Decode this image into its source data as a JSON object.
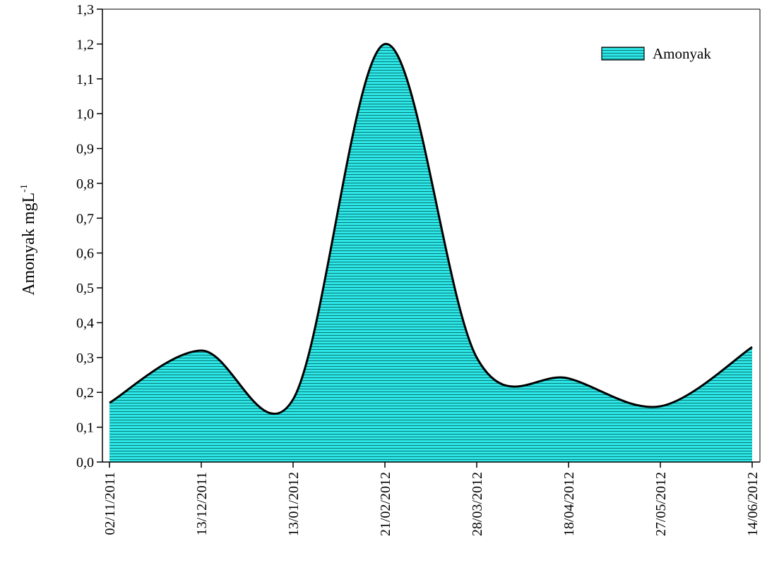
{
  "chart_data": {
    "type": "area",
    "title": "",
    "xlabel": "",
    "ylabel": "Amonyak mgL",
    "ylabel_superscript": "-1",
    "ylim": [
      0,
      1.3
    ],
    "yticks": [
      0.0,
      0.1,
      0.2,
      0.3,
      0.4,
      0.5,
      0.6,
      0.7,
      0.8,
      0.9,
      1.0,
      1.1,
      1.2,
      1.3
    ],
    "ytick_labels": [
      "0,0",
      "0,1",
      "0,2",
      "0,3",
      "0,4",
      "0,5",
      "0,6",
      "0,7",
      "0,8",
      "0,9",
      "1,0",
      "1,1",
      "1,2",
      "1,3"
    ],
    "categories": [
      "02/11/2011",
      "13/12/2011",
      "13/01/2012",
      "21/02/2012",
      "28/03/2012",
      "18/04/2012",
      "27/05/2012",
      "14/06/2012"
    ],
    "series": [
      {
        "name": "Amonyak",
        "values": [
          0.17,
          0.32,
          0.18,
          1.2,
          0.3,
          0.24,
          0.16,
          0.33
        ]
      }
    ],
    "legend_position": "top-right",
    "grid": false,
    "colors": {
      "fill": "#2ee6e6",
      "hatch": "#0a7a7a",
      "line": "#000000"
    }
  }
}
